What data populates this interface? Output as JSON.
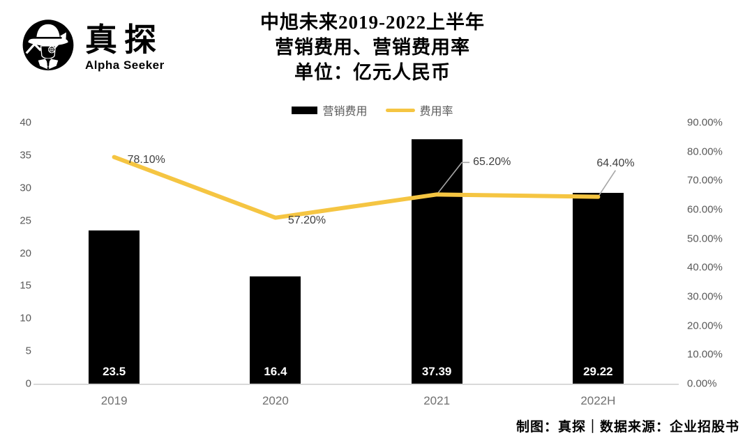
{
  "logo": {
    "brand": "真探",
    "tagline": "Alpha Seeker"
  },
  "title": {
    "line1": "中旭未来2019-2022上半年",
    "line2": "营销费用、营销费用率",
    "line3": "单位：亿元人民币"
  },
  "legend": [
    {
      "label": "营销费用",
      "type": "bar",
      "color": "#000000"
    },
    {
      "label": "费用率",
      "type": "line",
      "color": "#F5C542"
    }
  ],
  "footer": "制图：真探｜数据来源：企业招股书",
  "colors": {
    "bar": "#000000",
    "line": "#F5C542",
    "axis_text": "#595959",
    "category_text": "#707070",
    "axis_line": "#D9D9D9",
    "leader_line": "#A6A6A6",
    "data_label": "#3F3F3F"
  },
  "chart_data": {
    "type": "bar",
    "subtype": "bar+line combo, dual axis",
    "title": "中旭未来2019-2022上半年营销费用、营销费用率（单位：亿元人民币）",
    "categories": [
      "2019",
      "2020",
      "2021",
      "2022H"
    ],
    "series": [
      {
        "name": "营销费用",
        "type": "bar",
        "axis": "left",
        "values": [
          23.5,
          16.4,
          37.39,
          29.22
        ],
        "labels": [
          "23.5",
          "16.4",
          "37.39",
          "29.22"
        ],
        "color": "#000000"
      },
      {
        "name": "费用率",
        "type": "line",
        "axis": "right",
        "values": [
          78.1,
          57.2,
          65.2,
          64.4
        ],
        "labels": [
          "78.10%",
          "57.20%",
          "65.20%",
          "64.40%"
        ],
        "color": "#F5C542"
      }
    ],
    "left_axis": {
      "min": 0,
      "max": 40,
      "step": 5,
      "ticks": [
        "0",
        "5",
        "10",
        "15",
        "20",
        "25",
        "30",
        "35",
        "40"
      ]
    },
    "right_axis": {
      "min": 0,
      "max": 90,
      "step": 10,
      "ticks": [
        "0.00%",
        "10.00%",
        "20.00%",
        "30.00%",
        "40.00%",
        "50.00%",
        "60.00%",
        "70.00%",
        "80.00%",
        "90.00%"
      ]
    },
    "grid": false,
    "legend_position": "top-center"
  }
}
